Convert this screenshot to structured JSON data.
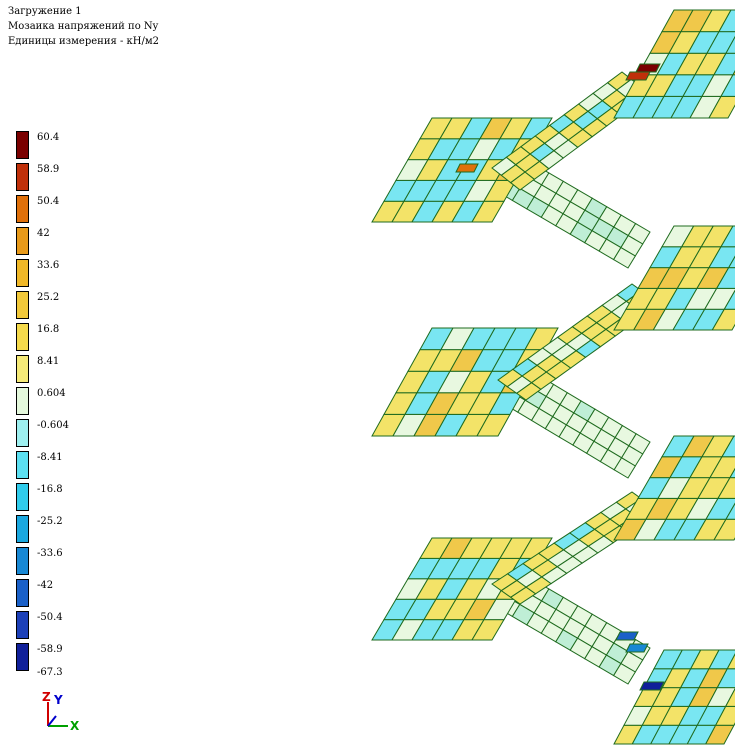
{
  "header": {
    "line1": "Загружение 1",
    "line2": "Мозаика напряжений по Ny",
    "line3": "Единицы измерения - кН/м2"
  },
  "legend": {
    "items": [
      {
        "label": "60.4",
        "color": "#7a0000"
      },
      {
        "label": "58.9",
        "color": "#c0300a"
      },
      {
        "label": "50.4",
        "color": "#e0700a"
      },
      {
        "label": "42",
        "color": "#e89a1a"
      },
      {
        "label": "33.6",
        "color": "#f0b828"
      },
      {
        "label": "25.2",
        "color": "#f2c93a"
      },
      {
        "label": "16.8",
        "color": "#f5da4c"
      },
      {
        "label": "8.41",
        "color": "#f5ea78"
      },
      {
        "label": "0.604",
        "color": "#e4f8dc"
      },
      {
        "label": "-0.604",
        "color": "#9ef0f0"
      },
      {
        "label": "-8.41",
        "color": "#5ce0f2"
      },
      {
        "label": "-16.8",
        "color": "#30ccec"
      },
      {
        "label": "-25.2",
        "color": "#1aa8e0"
      },
      {
        "label": "-33.6",
        "color": "#1888d4"
      },
      {
        "label": "-42",
        "color": "#1a60c8"
      },
      {
        "label": "-50.4",
        "color": "#1c40b8"
      },
      {
        "label": "-58.9",
        "color": "#10209a"
      }
    ],
    "final_label": "-67.3"
  },
  "axes": {
    "z": "Z",
    "y": "Y",
    "x": "X"
  },
  "colors": {
    "mesh_line": "#1f6b1f",
    "flight": "#e8f8e0",
    "flight_alt": "#bfeed6",
    "landing_yellow": "#f3e368",
    "landing_cyan": "#79e6f2",
    "hot_red": "#c0300a",
    "hot_dark": "#7a0000",
    "cold_blue": "#1a60c8",
    "cold_dark": "#10209a"
  }
}
